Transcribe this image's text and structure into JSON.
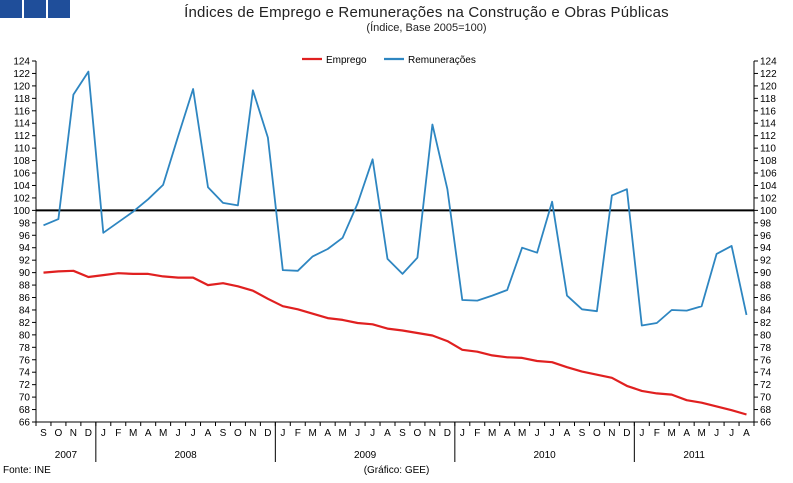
{
  "header": {
    "logo_color": "#1f4e9a"
  },
  "chart_data": {
    "type": "line",
    "title": "Índices de Emprego e Remunerações na Construção e Obras Públicas",
    "subtitle": "(Índice, Base 2005=100)",
    "ylim": [
      66,
      124
    ],
    "ytick_step": 2,
    "reference_line": 100,
    "legend_position": "top-center",
    "x": [
      "S",
      "O",
      "N",
      "D",
      "J",
      "F",
      "M",
      "A",
      "M",
      "J",
      "J",
      "A",
      "S",
      "O",
      "N",
      "D",
      "J",
      "F",
      "M",
      "A",
      "M",
      "J",
      "J",
      "A",
      "S",
      "O",
      "N",
      "D",
      "J",
      "F",
      "M",
      "A",
      "M",
      "J",
      "J",
      "A",
      "S",
      "O",
      "N",
      "D",
      "J",
      "F",
      "M",
      "A",
      "M",
      "J",
      "J",
      "A"
    ],
    "years": [
      {
        "label": "2007",
        "start": 0,
        "count": 4
      },
      {
        "label": "2008",
        "start": 4,
        "count": 12
      },
      {
        "label": "2009",
        "start": 16,
        "count": 12
      },
      {
        "label": "2010",
        "start": 28,
        "count": 12
      },
      {
        "label": "2011",
        "start": 40,
        "count": 8
      }
    ],
    "series": [
      {
        "name": "Emprego",
        "color": "#e02020",
        "values": [
          90.0,
          90.2,
          90.3,
          89.3,
          89.6,
          89.9,
          89.8,
          89.8,
          89.4,
          89.2,
          89.2,
          88.0,
          88.3,
          87.8,
          87.1,
          85.8,
          84.6,
          84.1,
          83.4,
          82.7,
          82.4,
          81.9,
          81.7,
          81.0,
          80.7,
          80.3,
          79.9,
          79.0,
          77.6,
          77.3,
          76.7,
          76.4,
          76.3,
          75.8,
          75.6,
          74.8,
          74.1,
          73.6,
          73.1,
          71.8,
          71.0,
          70.6,
          70.4,
          69.5,
          69.1,
          68.5,
          67.9,
          67.2
        ]
      },
      {
        "name": "Remunerações",
        "color": "#2e86c1",
        "values": [
          97.6,
          98.6,
          118.6,
          122.3,
          96.4,
          98.1,
          99.8,
          101.8,
          104.1,
          111.9,
          119.5,
          103.7,
          101.2,
          100.8,
          119.3,
          111.7,
          90.4,
          90.3,
          92.6,
          93.8,
          95.6,
          101.1,
          108.2,
          92.2,
          89.8,
          92.4,
          113.8,
          103.4,
          85.6,
          85.5,
          86.3,
          87.2,
          94.0,
          93.2,
          101.4,
          86.3,
          84.1,
          83.8,
          102.4,
          103.4,
          81.5,
          81.9,
          84.0,
          83.9,
          84.6,
          93.0,
          94.3,
          83.2
        ]
      }
    ]
  },
  "footer": {
    "source": "Fonte: INE",
    "credit": "(Gráfico: GEE)"
  }
}
